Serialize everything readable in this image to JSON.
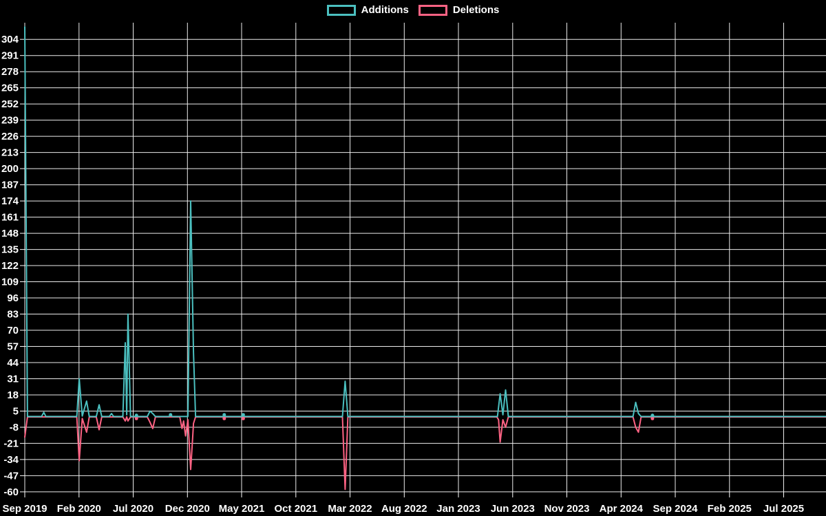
{
  "colors": {
    "background": "#000000",
    "grid": "#ededed",
    "text": "#ffffff",
    "additions": "#4bc0c0",
    "deletions": "#ff6384"
  },
  "legend": {
    "items": [
      {
        "id": "additions",
        "label": "Additions",
        "color": "#4bc0c0"
      },
      {
        "id": "deletions",
        "label": "Deletions",
        "color": "#ff6384"
      }
    ]
  },
  "chart_data": {
    "type": "line",
    "title": "",
    "xlabel": "",
    "ylabel": "",
    "grid": true,
    "legend_position": "top-center",
    "x_axis": {
      "unit": "months since Sep 2019",
      "tick_step_months": 5,
      "ticks_months": [
        0,
        5,
        10,
        15,
        20,
        25,
        30,
        35,
        40,
        45,
        50,
        55,
        60,
        65,
        70
      ],
      "tick_labels": [
        "Sep 2019",
        "Feb 2020",
        "Jul 2020",
        "Dec 2020",
        "May 2021",
        "Oct 2021",
        "Mar 2022",
        "Aug 2022",
        "Jan 2023",
        "Jun 2023",
        "Nov 2023",
        "Apr 2024",
        "Sep 2024",
        "Feb 2025",
        "Jul 2025"
      ],
      "range_months": [
        0,
        74
      ]
    },
    "y_axis": {
      "ticks": [
        304,
        291,
        278,
        265,
        252,
        239,
        226,
        213,
        200,
        187,
        174,
        161,
        148,
        135,
        122,
        109,
        96,
        83,
        70,
        57,
        44,
        31,
        18,
        5,
        -8,
        -21,
        -34,
        -47,
        -60
      ],
      "min": -60,
      "max": 317
    },
    "series": [
      {
        "name": "Additions",
        "color": "#4bc0c0",
        "baseline": 0.6,
        "points": [
          [
            0,
            314
          ],
          [
            0.25,
            0.6
          ],
          [
            1.55,
            0.6
          ],
          [
            1.75,
            4
          ],
          [
            1.95,
            0.6
          ],
          [
            4.8,
            0.6
          ],
          [
            5.02,
            31
          ],
          [
            5.3,
            1
          ],
          [
            5.7,
            13
          ],
          [
            5.95,
            0.6
          ],
          [
            6.6,
            0.6
          ],
          [
            6.86,
            10
          ],
          [
            7.1,
            0.6
          ],
          [
            7.8,
            0.6
          ],
          [
            8.0,
            3
          ],
          [
            8.2,
            0.6
          ],
          [
            9.05,
            0.6
          ],
          [
            9.27,
            60
          ],
          [
            9.4,
            2
          ],
          [
            9.52,
            83
          ],
          [
            9.75,
            0.6
          ],
          [
            10.25,
            0.6
          ],
          [
            10.3,
            1.5
          ],
          [
            10.35,
            0.6
          ],
          [
            11.3,
            0.6
          ],
          [
            11.55,
            5
          ],
          [
            11.8,
            3
          ],
          [
            12.05,
            0.6
          ],
          [
            13.3,
            0.6
          ],
          [
            13.45,
            2
          ],
          [
            13.6,
            0.6
          ],
          [
            14.3,
            0.6
          ],
          [
            15.05,
            0.6
          ],
          [
            15.3,
            174
          ],
          [
            15.46,
            100
          ],
          [
            15.56,
            52
          ],
          [
            15.75,
            0.6
          ],
          [
            18.3,
            0.6
          ],
          [
            18.4,
            2
          ],
          [
            18.5,
            0.6
          ],
          [
            20.05,
            0.6
          ],
          [
            20.15,
            2
          ],
          [
            20.25,
            0.6
          ],
          [
            29.3,
            0.6
          ],
          [
            29.55,
            29
          ],
          [
            29.8,
            0.6
          ],
          [
            43.6,
            0.6
          ],
          [
            43.85,
            19
          ],
          [
            44.1,
            2
          ],
          [
            44.35,
            22
          ],
          [
            44.6,
            0.6
          ],
          [
            56.1,
            0.6
          ],
          [
            56.35,
            12
          ],
          [
            56.6,
            3
          ],
          [
            56.85,
            0.6
          ],
          [
            57.8,
            0.6
          ],
          [
            57.9,
            1.5
          ],
          [
            58.0,
            0.6
          ],
          [
            74,
            0.6
          ]
        ],
        "markers": [
          [
            10.3,
            1.5
          ],
          [
            13.45,
            2
          ],
          [
            18.4,
            2
          ],
          [
            20.15,
            2
          ],
          [
            57.9,
            1.5
          ]
        ]
      },
      {
        "name": "Deletions",
        "color": "#ff6384",
        "baseline": 0.3,
        "points": [
          [
            0,
            -16
          ],
          [
            0.25,
            0.3
          ],
          [
            1.55,
            0.3
          ],
          [
            4.8,
            0.3
          ],
          [
            5.02,
            -35
          ],
          [
            5.3,
            -1
          ],
          [
            5.7,
            -12
          ],
          [
            5.95,
            0.3
          ],
          [
            6.6,
            0.3
          ],
          [
            6.86,
            -10
          ],
          [
            7.1,
            0.3
          ],
          [
            9.05,
            0.3
          ],
          [
            9.27,
            -3
          ],
          [
            9.4,
            0.3
          ],
          [
            9.52,
            -3
          ],
          [
            9.75,
            0.3
          ],
          [
            10.25,
            0.3
          ],
          [
            10.3,
            -1
          ],
          [
            10.35,
            0.3
          ],
          [
            11.3,
            0.3
          ],
          [
            11.55,
            -4
          ],
          [
            11.8,
            -9
          ],
          [
            12.05,
            0.3
          ],
          [
            14.3,
            0.3
          ],
          [
            14.5,
            -9
          ],
          [
            14.65,
            -3
          ],
          [
            14.83,
            -15
          ],
          [
            15.05,
            -2
          ],
          [
            15.3,
            -42
          ],
          [
            15.46,
            -20
          ],
          [
            15.56,
            -5
          ],
          [
            15.75,
            0.3
          ],
          [
            18.35,
            0.3
          ],
          [
            18.4,
            -1
          ],
          [
            18.45,
            0.3
          ],
          [
            20.1,
            0.3
          ],
          [
            20.15,
            -1
          ],
          [
            20.2,
            0.3
          ],
          [
            29.3,
            0.3
          ],
          [
            29.55,
            -58
          ],
          [
            29.8,
            0.3
          ],
          [
            43.55,
            0.3
          ],
          [
            43.7,
            -2
          ],
          [
            43.85,
            -20
          ],
          [
            44.1,
            -2
          ],
          [
            44.35,
            -8
          ],
          [
            44.6,
            0.3
          ],
          [
            56.1,
            0.3
          ],
          [
            56.35,
            -8
          ],
          [
            56.6,
            -12
          ],
          [
            56.85,
            0.3
          ],
          [
            57.85,
            0.3
          ],
          [
            57.9,
            -1
          ],
          [
            57.95,
            0.3
          ],
          [
            74,
            0.3
          ]
        ],
        "markers": [
          [
            10.3,
            -1
          ],
          [
            18.4,
            -1
          ],
          [
            20.15,
            -1
          ],
          [
            57.9,
            -1
          ]
        ]
      }
    ],
    "events": [
      {
        "period": "Sep 2019",
        "additions": 314,
        "deletions": 16
      },
      {
        "period": "Nov 2019",
        "additions": 4,
        "deletions": 0
      },
      {
        "period": "Feb 2020",
        "additions": 31,
        "deletions": 35
      },
      {
        "period": "Feb 2020 (late)",
        "additions": 13,
        "deletions": 12
      },
      {
        "period": "Mar 2020",
        "additions": 10,
        "deletions": 10
      },
      {
        "period": "May 2020",
        "additions": 3,
        "deletions": 0
      },
      {
        "period": "Jun 2020",
        "additions": 60,
        "deletions": 3
      },
      {
        "period": "Jul 2020",
        "additions": 83,
        "deletions": 3
      },
      {
        "period": "Aug 2020",
        "additions": 5,
        "deletions": 9
      },
      {
        "period": "Nov 2020",
        "additions": 1,
        "deletions": 15
      },
      {
        "period": "Dec 2020",
        "additions": 174,
        "deletions": 42
      },
      {
        "period": "Dec 2020 (late)",
        "additions": 100,
        "deletions": 20
      },
      {
        "period": "Jan 2021",
        "additions": 52,
        "deletions": 5
      },
      {
        "period": "Mar 2021",
        "additions": 2,
        "deletions": 1
      },
      {
        "period": "May 2021",
        "additions": 2,
        "deletions": 1
      },
      {
        "period": "Feb 2022",
        "additions": 29,
        "deletions": 58
      },
      {
        "period": "May 2023",
        "additions": 19,
        "deletions": 20
      },
      {
        "period": "Jun 2023",
        "additions": 22,
        "deletions": 8
      },
      {
        "period": "May 2024",
        "additions": 12,
        "deletions": 12
      },
      {
        "period": "Jul 2024",
        "additions": 1,
        "deletions": 1
      }
    ]
  }
}
